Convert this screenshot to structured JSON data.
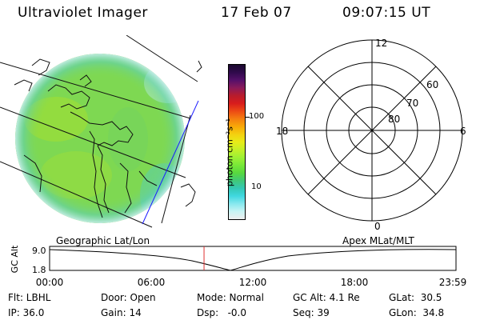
{
  "header": {
    "title": "Ultraviolet Imager",
    "date": "17 Feb 07",
    "time": "09:07:15 UT"
  },
  "colorbar": {
    "unit_label": "photon cm⁻²s⁻¹",
    "ticks": [
      "100",
      "10"
    ],
    "colors": [
      "#1a0a2e",
      "#300a4c",
      "#55106a",
      "#8a1a5a",
      "#b81c2c",
      "#d81c1c",
      "#ec4a14",
      "#f47e10",
      "#f8a808",
      "#f4d010",
      "#e8ec18",
      "#c4f028",
      "#9ef034",
      "#78e838",
      "#58d83e",
      "#40c878",
      "#34c8b4",
      "#40d8e0",
      "#88e8ee",
      "#c8f4f4",
      "#eeeeee"
    ]
  },
  "image_panel": {
    "label": "Geographic Lat/Lon",
    "disc_color": "#7ed852"
  },
  "polar_panel": {
    "label": "Apex MLat/MLT",
    "mlt_labels": [
      "12",
      "18",
      "6",
      "0"
    ],
    "lat_labels": [
      "60",
      "70",
      "80"
    ]
  },
  "altitude_plot": {
    "ylabel": "GC Alt",
    "yticks": [
      "9.0",
      "1.8"
    ],
    "xticks": [
      "00:00",
      "06:00",
      "12:00",
      "18:00",
      "23:59"
    ],
    "marker_time_hours": 9.12
  },
  "info": {
    "flt": "Flt: LBHL",
    "ip": "IP: 36.0",
    "door": "Door: Open",
    "gain": "Gain: 14",
    "mode": "Mode: Normal",
    "dsp": "Dsp:   -0.0",
    "gcalt": "GC Alt: 4.1 Re",
    "seq": "Seq: 39",
    "glat": "GLat:  30.5",
    "glon": "GLon:  34.8"
  }
}
